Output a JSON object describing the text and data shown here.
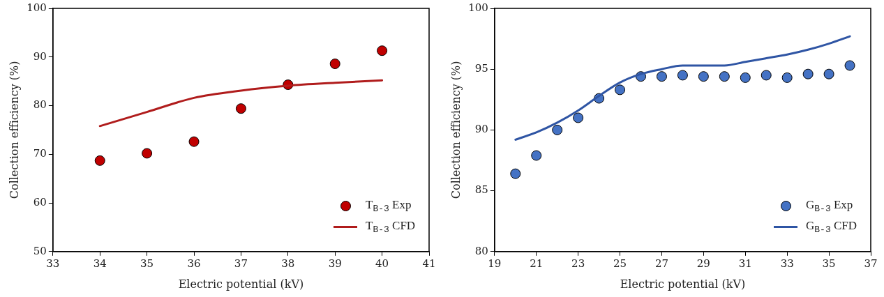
{
  "chart_data": [
    {
      "type": "scatter",
      "xlabel": "Electric potential (kV)",
      "ylabel": "Collection efficiency (%)",
      "xlim": [
        33,
        41
      ],
      "xticks": [
        33,
        34,
        35,
        36,
        37,
        38,
        39,
        40,
        41
      ],
      "ylim": [
        50,
        100
      ],
      "yticks": [
        50,
        60,
        70,
        80,
        90,
        100
      ],
      "grid": false,
      "legend": "bottom right",
      "series": [
        {
          "name": "T$_{B-3}$ Exp",
          "marker": "circle",
          "color": "#c00000",
          "x": [
            34,
            35,
            36,
            37,
            38,
            39,
            40
          ],
          "values": [
            68.7,
            70.2,
            72.6,
            79.4,
            84.3,
            88.6,
            91.3
          ]
        },
        {
          "name": "T$_{B-3}$ CFD",
          "type": "line",
          "marker": "none",
          "line_style": "solid",
          "color": "#b01c1c",
          "x": [
            34,
            35,
            36,
            37,
            38,
            39,
            40
          ],
          "values": [
            75.8,
            78.7,
            81.6,
            83.1,
            84.1,
            84.7,
            85.2
          ]
        }
      ]
    },
    {
      "type": "scatter",
      "xlabel": "Electric potential (kV)",
      "ylabel": "Collection efficiency (%)",
      "xlim": [
        19,
        37
      ],
      "xticks": [
        19,
        21,
        23,
        25,
        27,
        29,
        31,
        33,
        35,
        37
      ],
      "ylim": [
        80,
        100
      ],
      "yticks": [
        80,
        85,
        90,
        95,
        100
      ],
      "grid": false,
      "legend": "bottom right",
      "series": [
        {
          "name": "G$_{B-3}$ Exp",
          "marker": "circle",
          "color": "#4472c4",
          "x": [
            20,
            21,
            22,
            23,
            24,
            25,
            26,
            27,
            28,
            29,
            30,
            31,
            32,
            33,
            34,
            35,
            36
          ],
          "values": [
            86.4,
            87.9,
            90.0,
            91.0,
            92.6,
            93.3,
            94.4,
            94.4,
            94.5,
            94.4,
            94.4,
            94.3,
            94.5,
            94.3,
            94.6,
            94.6,
            95.3
          ]
        },
        {
          "name": "G$_{B-3}$ CFD",
          "type": "line",
          "marker": "none",
          "line_style": "solid",
          "color": "#2f55a4",
          "x": [
            20,
            21,
            22,
            23,
            24,
            25,
            26,
            27,
            28,
            29,
            30,
            31,
            32,
            33,
            34,
            35,
            36
          ],
          "values": [
            89.2,
            89.8,
            90.6,
            91.6,
            92.8,
            93.9,
            94.6,
            95.0,
            95.3,
            95.3,
            95.3,
            95.6,
            95.9,
            96.2,
            96.6,
            97.1,
            97.7
          ]
        }
      ]
    }
  ]
}
